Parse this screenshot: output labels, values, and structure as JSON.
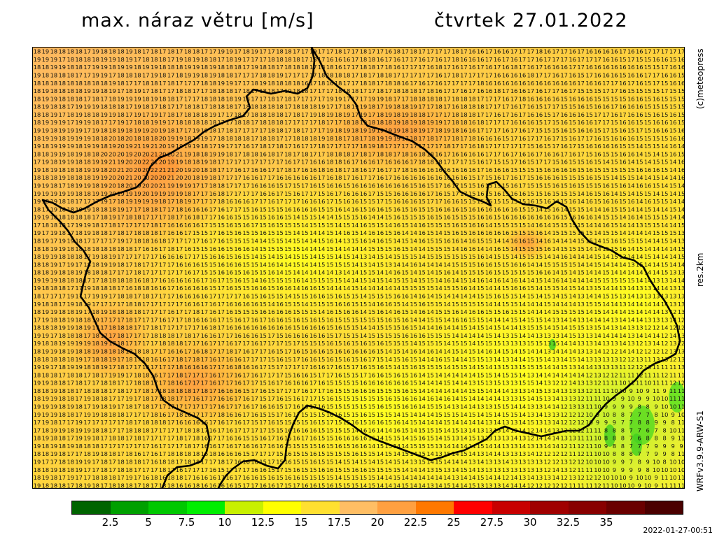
{
  "header": {
    "title": "max. náraz větru [m/s]",
    "date": "čtvrtek 27.01.2022"
  },
  "side": {
    "credit": "(c)meteopress",
    "resolution": "res.2km",
    "model": "WRFv3.9.9-ARW-S1"
  },
  "legend": {
    "colors": [
      "#006400",
      "#00a000",
      "#00c800",
      "#00ee00",
      "#c8f000",
      "#ffff00",
      "#ffe030",
      "#ffbe64",
      "#ffa040",
      "#ff7800",
      "#ff0000",
      "#c80000",
      "#a00000",
      "#880000",
      "#6a0000",
      "#4a0000"
    ],
    "ticks": [
      "2.5",
      "5",
      "7.5",
      "10",
      "12.5",
      "15",
      "17.5",
      "20",
      "22.5",
      "25",
      "27.5",
      "30",
      "32.5",
      "35"
    ]
  },
  "footer": {
    "timestamp": "2022-01-27-00:51"
  }
}
